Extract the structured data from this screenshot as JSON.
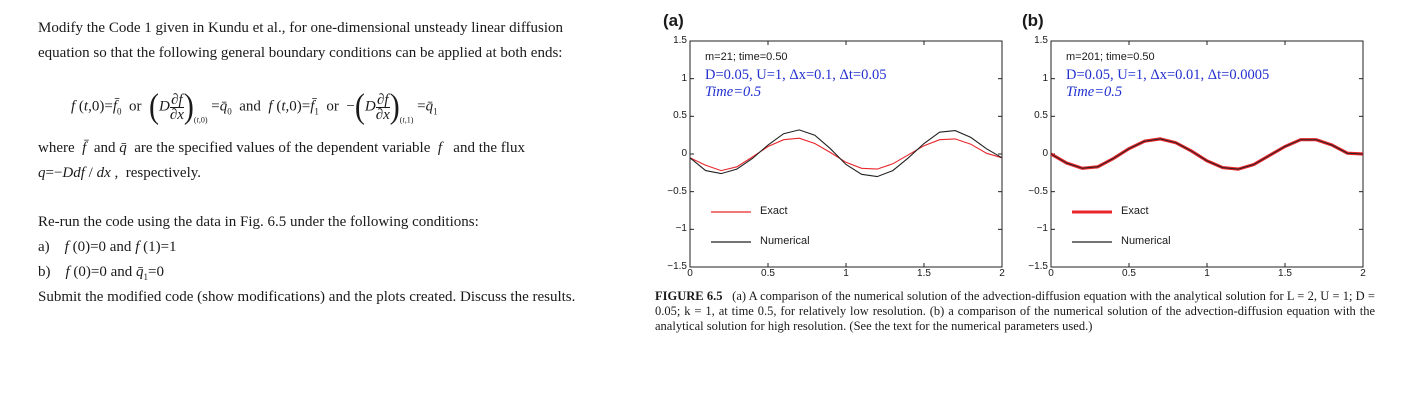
{
  "problem": {
    "line1": "Modify the Code 1 given in Kundu et al., for one-dimensional unsteady linear diffusion",
    "line2": "equation so that the following general boundary conditions can be applied at both ends:",
    "where_text": "are the specified values of the dependent variable",
    "flux_text": "and the flux",
    "respectively": "respectively.",
    "rerun": "Re-run the code using the data in Fig. 6.5 under the following conditions:",
    "cond_a_label": "a)",
    "cond_b_label": "b)",
    "submit": "Submit the modified code (show modifications) and the plots created.  Discuss the results."
  },
  "figure": {
    "panels": [
      {
        "label": "(a)",
        "info": "m=21; time=0.50",
        "params": "D=0.05,  U=1,  Δx=0.1,  Δt=0.05",
        "time": "Time=0.5"
      },
      {
        "label": "(b)",
        "info": "m=201; time=0.50",
        "params": "D=0.05,  U=1,  Δx=0.01,  Δt=0.0005",
        "time": "Time=0.5"
      }
    ],
    "legend": {
      "exact": "Exact",
      "numerical": "Numerical"
    },
    "colors": {
      "exact": "#e8262b",
      "numerical": "#222222",
      "params_text": "#2230d0"
    },
    "yticks": [
      "1.5",
      "1",
      "0.5",
      "0",
      "−0.5",
      "−1",
      "−1.5"
    ],
    "xticks": [
      "0",
      "0.5",
      "1",
      "1.5",
      "2"
    ],
    "caption_label": "FIGURE 6.5",
    "caption_text": "(a) A comparison of the numerical solution of the advection-diffusion equation with the analytical solution for L = 2, U = 1; D = 0.05; k = 1, at time 0.5, for relatively low resolution. (b) a comparison of the numerical solution of the advection-diffusion equation with the analytical solution for high resolution. (See the text for the numerical parameters used.)"
  },
  "chart_data": [
    {
      "type": "line",
      "title": "",
      "xlim": [
        0,
        2
      ],
      "ylim": [
        -1.5,
        1.5
      ],
      "series": [
        {
          "name": "Exact",
          "x": [
            0,
            0.1,
            0.2,
            0.3,
            0.4,
            0.5,
            0.6,
            0.7,
            0.8,
            0.9,
            1.0,
            1.1,
            1.2,
            1.3,
            1.4,
            1.5,
            1.6,
            1.7,
            1.8,
            1.9,
            2.0
          ],
          "values": [
            -0.05,
            -0.15,
            -0.22,
            -0.17,
            -0.04,
            0.1,
            0.19,
            0.21,
            0.14,
            0.02,
            -0.11,
            -0.19,
            -0.2,
            -0.13,
            -0.01,
            0.11,
            0.19,
            0.2,
            0.13,
            0.01,
            -0.05
          ]
        },
        {
          "name": "Numerical",
          "x": [
            0,
            0.1,
            0.2,
            0.3,
            0.4,
            0.5,
            0.6,
            0.7,
            0.8,
            0.9,
            1.0,
            1.1,
            1.2,
            1.3,
            1.4,
            1.5,
            1.6,
            1.7,
            1.8,
            1.9,
            2.0
          ],
          "values": [
            -0.05,
            -0.22,
            -0.26,
            -0.2,
            -0.06,
            0.12,
            0.27,
            0.32,
            0.25,
            0.07,
            -0.14,
            -0.27,
            -0.3,
            -0.22,
            -0.05,
            0.14,
            0.29,
            0.31,
            0.22,
            0.07,
            -0.05
          ]
        }
      ]
    },
    {
      "type": "line",
      "title": "",
      "xlim": [
        0,
        2
      ],
      "ylim": [
        -1.5,
        1.5
      ],
      "series": [
        {
          "name": "Exact",
          "x": [
            0,
            0.1,
            0.2,
            0.3,
            0.4,
            0.5,
            0.6,
            0.7,
            0.8,
            0.9,
            1.0,
            1.1,
            1.2,
            1.3,
            1.4,
            1.5,
            1.6,
            1.7,
            1.8,
            1.9,
            2.0
          ],
          "values": [
            0.0,
            -0.12,
            -0.19,
            -0.17,
            -0.06,
            0.07,
            0.17,
            0.2,
            0.15,
            0.04,
            -0.09,
            -0.18,
            -0.2,
            -0.14,
            -0.02,
            0.1,
            0.19,
            0.19,
            0.12,
            0.01,
            0.0
          ]
        },
        {
          "name": "Numerical",
          "x": [
            0,
            0.1,
            0.2,
            0.3,
            0.4,
            0.5,
            0.6,
            0.7,
            0.8,
            0.9,
            1.0,
            1.1,
            1.2,
            1.3,
            1.4,
            1.5,
            1.6,
            1.7,
            1.8,
            1.9,
            2.0
          ],
          "values": [
            0.0,
            -0.12,
            -0.19,
            -0.17,
            -0.06,
            0.07,
            0.17,
            0.2,
            0.15,
            0.04,
            -0.09,
            -0.18,
            -0.2,
            -0.14,
            -0.02,
            0.1,
            0.19,
            0.19,
            0.12,
            0.01,
            0.0
          ]
        }
      ]
    }
  ]
}
